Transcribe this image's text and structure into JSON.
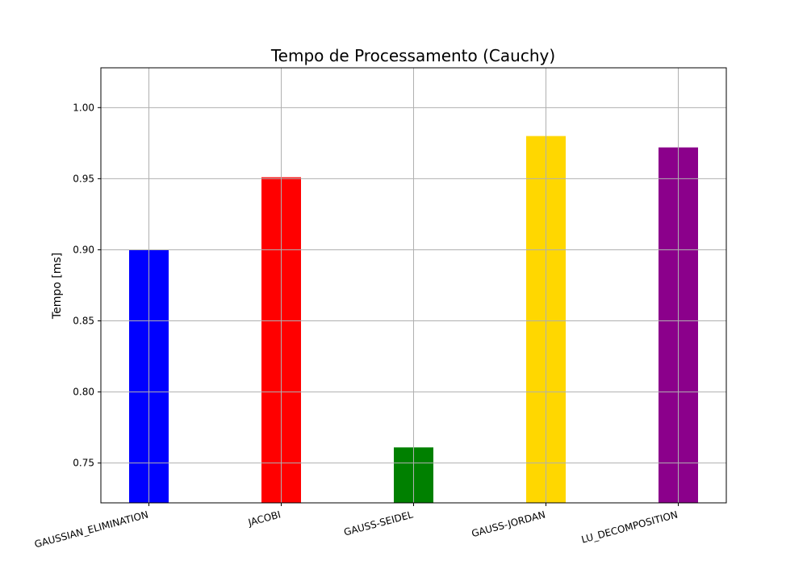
{
  "chart_data": {
    "type": "bar",
    "title": "Tempo de Processamento (Cauchy)",
    "xlabel": "",
    "ylabel": "Tempo [ms]",
    "categories": [
      "GAUSSIAN_ELIMINATION",
      "JACOBI",
      "GAUSS-SEIDEL",
      "GAUSS-JORDAN",
      "LU_DECOMPOSITION"
    ],
    "values": [
      0.9,
      0.951,
      0.761,
      0.98,
      0.972
    ],
    "colors": [
      "#0000ff",
      "#ff0000",
      "#008000",
      "#ffd700",
      "#8b008b"
    ],
    "ylim": [
      0.722,
      1.028
    ],
    "yticks": [
      0.75,
      0.8,
      0.85,
      0.9,
      0.95,
      1.0
    ],
    "ytick_labels": [
      "0.75",
      "0.80",
      "0.85",
      "0.90",
      "0.95",
      "1.00"
    ],
    "grid": true,
    "x_tick_rotation": "rotated"
  }
}
